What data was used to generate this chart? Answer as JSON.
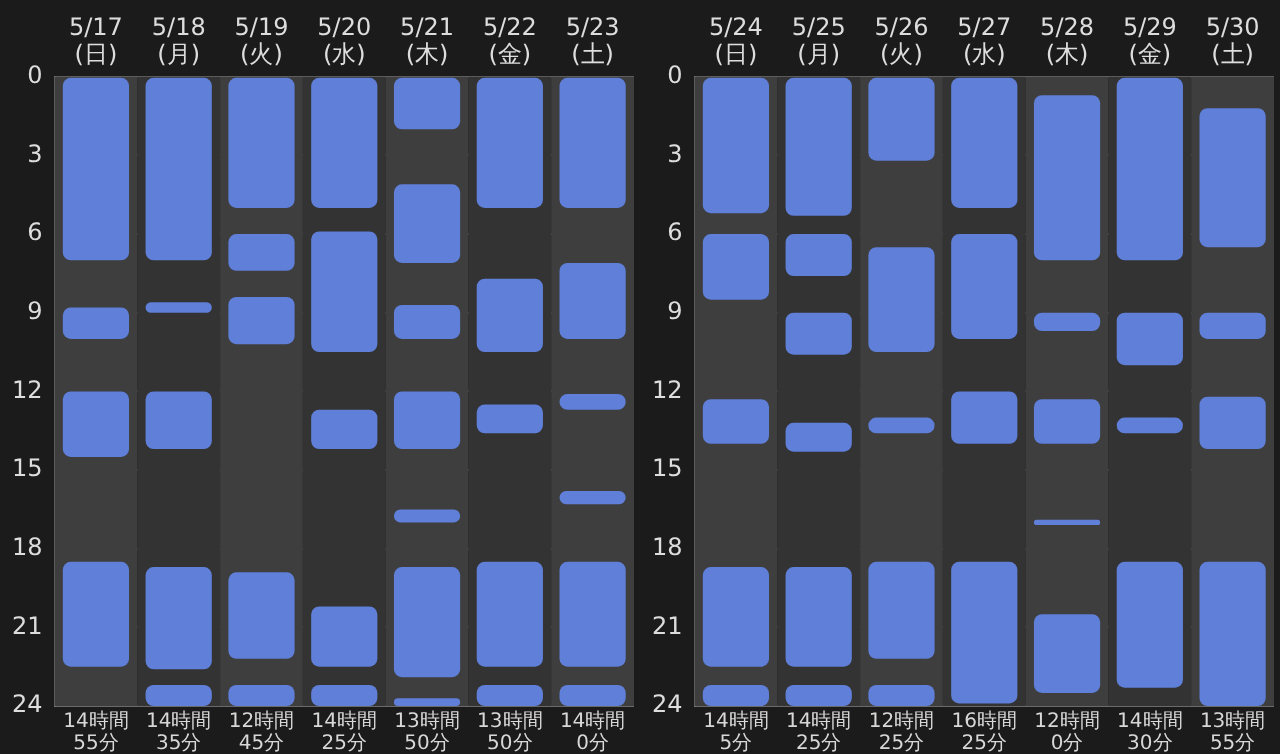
{
  "chart_data": [
    {
      "type": "bar",
      "categories": [
        "5/17\n(日)",
        "5/18\n(月)",
        "5/19\n(火)",
        "5/20\n(水)",
        "5/21\n(木)",
        "5/22\n(金)",
        "5/23\n(土)"
      ],
      "ylim": [
        24,
        0
      ],
      "yticks": [
        0,
        3,
        6,
        9,
        12,
        15,
        18,
        21,
        24
      ],
      "grid": "y",
      "legend": false,
      "totals": [
        "14時間\n55分",
        "14時間\n35分",
        "12時間\n45分",
        "14時間\n25分",
        "13時間\n50分",
        "13時間\n50分",
        "14時間\n0分"
      ],
      "series": [
        {
          "color": "#5f7fd8",
          "base": [
            0,
            0,
            0,
            0,
            0,
            0,
            0
          ],
          "values": [
            7,
            7,
            5,
            5,
            2,
            5,
            5
          ]
        },
        {
          "color": "#5f7fd8",
          "base": [
            8.8,
            8.6,
            6,
            5.9,
            4.1,
            7.7,
            7.1
          ],
          "values": [
            1.2,
            0.4,
            1.4,
            4.6,
            3,
            2.8,
            2.9
          ]
        },
        {
          "color": "#5f7fd8",
          "base": [
            12,
            12,
            8.4,
            12.7,
            8.7,
            12.5,
            12.1
          ],
          "values": [
            2.5,
            2.2,
            1.8,
            1.5,
            1.3,
            1.1,
            0.6
          ]
        },
        {
          "color": "#5f7fd8",
          "base": [
            18.5,
            18.7,
            18.9,
            20.2,
            12,
            18.5,
            15.8
          ],
          "values": [
            4,
            3.9,
            3.3,
            2.3,
            2.2,
            4,
            0.5
          ]
        },
        {
          "color": "#5f7fd8",
          "base": [
            null,
            23.2,
            23.2,
            23.2,
            16.5,
            23.2,
            18.5
          ],
          "values": [
            null,
            0.8,
            0.8,
            0.8,
            0.5,
            0.8,
            4
          ]
        },
        {
          "color": "#5f7fd8",
          "base": [
            null,
            null,
            null,
            null,
            18.7,
            null,
            23.2
          ],
          "values": [
            null,
            null,
            null,
            null,
            4.2,
            null,
            0.8
          ]
        },
        {
          "color": "#5f7fd8",
          "base": [
            null,
            null,
            null,
            null,
            23.7,
            null,
            null
          ],
          "values": [
            null,
            null,
            null,
            null,
            0.3,
            null,
            null
          ]
        }
      ]
    },
    {
      "type": "bar",
      "categories": [
        "5/24\n(日)",
        "5/25\n(月)",
        "5/26\n(火)",
        "5/27\n(水)",
        "5/28\n(木)",
        "5/29\n(金)",
        "5/30\n(土)"
      ],
      "ylim": [
        24,
        0
      ],
      "yticks": [
        0,
        3,
        6,
        9,
        12,
        15,
        18,
        21,
        24
      ],
      "grid": "y",
      "legend": false,
      "totals": [
        "14時間\n5分",
        "14時間\n25分",
        "12時間\n25分",
        "16時間\n25分",
        "12時間\n0分",
        "14時間\n30分",
        "13時間\n55分"
      ],
      "series": [
        {
          "color": "#5f7fd8",
          "base": [
            0,
            0,
            0,
            0,
            0.7,
            0,
            1.2
          ],
          "values": [
            5.2,
            5.3,
            3.2,
            5,
            6.3,
            7,
            5.3
          ]
        },
        {
          "color": "#5f7fd8",
          "base": [
            6,
            6,
            6.5,
            6,
            9,
            9,
            9
          ],
          "values": [
            2.5,
            1.6,
            4,
            4,
            0.7,
            2,
            1
          ]
        },
        {
          "color": "#5f7fd8",
          "base": [
            12.3,
            9,
            13,
            12,
            12.3,
            13,
            12.2
          ],
          "values": [
            1.7,
            1.6,
            0.6,
            2,
            1.7,
            0.6,
            2
          ]
        },
        {
          "color": "#5f7fd8",
          "base": [
            18.7,
            13.2,
            18.5,
            18.5,
            16.9,
            18.5,
            18.5
          ],
          "values": [
            3.8,
            1.1,
            3.7,
            5.4,
            0.2,
            4.8,
            5.5
          ]
        },
        {
          "color": "#5f7fd8",
          "base": [
            23.2,
            18.7,
            23.2,
            null,
            20.5,
            null,
            null
          ],
          "values": [
            0.8,
            3.8,
            0.8,
            null,
            3,
            null,
            null
          ]
        },
        {
          "color": "#5f7fd8",
          "base": [
            null,
            23.2,
            null,
            null,
            null,
            null,
            null
          ],
          "values": [
            null,
            0.8,
            null,
            null,
            null,
            null,
            null
          ]
        }
      ]
    }
  ]
}
